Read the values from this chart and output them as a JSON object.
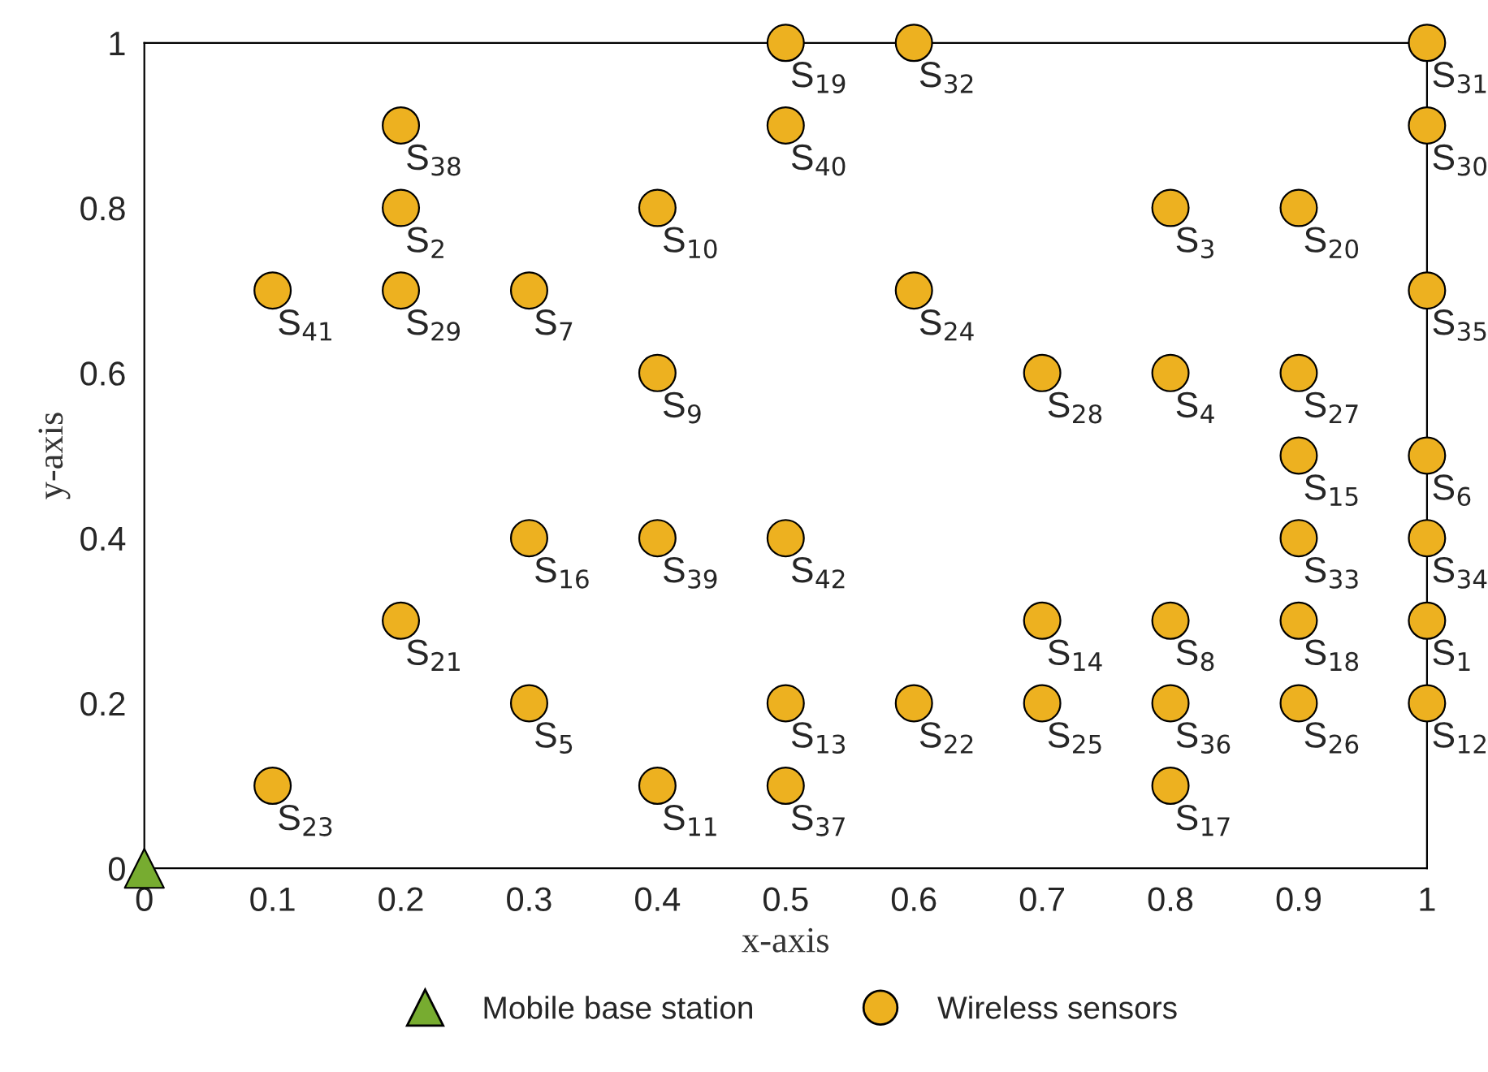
{
  "chart_data": {
    "type": "scatter",
    "xlabel": "x-axis",
    "ylabel": "y-axis",
    "xlim": [
      0,
      1
    ],
    "ylim": [
      0,
      1
    ],
    "xticks": [
      0,
      0.1,
      0.2,
      0.3,
      0.4,
      0.5,
      0.6,
      0.7,
      0.8,
      0.9,
      1
    ],
    "yticks": [
      0,
      0.2,
      0.4,
      0.6,
      0.8,
      1
    ],
    "grid": false,
    "legend": "bottom",
    "series": [
      {
        "name": "Mobile base station",
        "color": "#77ac30",
        "marker": "triangle",
        "x": [
          0
        ],
        "values": [
          0
        ]
      },
      {
        "name": "Wireless sensors",
        "color": "#edb120",
        "marker": "circle",
        "x": [
          0.1,
          0.1,
          0.2,
          0.2,
          0.2,
          0.2,
          0.3,
          0.3,
          0.3,
          0.4,
          0.4,
          0.4,
          0.4,
          0.5,
          0.5,
          0.5,
          0.5,
          0.5,
          0.6,
          0.6,
          0.6,
          0.7,
          0.7,
          0.7,
          0.8,
          0.8,
          0.8,
          0.8,
          0.8,
          0.9,
          0.9,
          0.9,
          0.9,
          0.9,
          0.9,
          1,
          1,
          1,
          1,
          1,
          1,
          1
        ],
        "values": [
          0.7,
          0.1,
          0.9,
          0.8,
          0.7,
          0.3,
          0.7,
          0.4,
          0.2,
          0.8,
          0.6,
          0.4,
          0.1,
          1,
          0.9,
          0.4,
          0.2,
          0.1,
          1,
          0.7,
          0.2,
          0.6,
          0.3,
          0.2,
          0.8,
          0.6,
          0.3,
          0.2,
          0.1,
          0.8,
          0.6,
          0.5,
          0.4,
          0.3,
          0.2,
          1,
          0.9,
          0.7,
          0.5,
          0.4,
          0.3,
          0.2
        ]
      }
    ],
    "annotations": [
      {
        "text": "S$_{41}$",
        "x": 0.1,
        "y": 0.7
      },
      {
        "text": "S$_{23}$",
        "x": 0.1,
        "y": 0.1
      },
      {
        "text": "S$_{38}$",
        "x": 0.2,
        "y": 0.9
      },
      {
        "text": "S$_{2}$",
        "x": 0.2,
        "y": 0.8
      },
      {
        "text": "S$_{29}$",
        "x": 0.2,
        "y": 0.7
      },
      {
        "text": "S$_{21}$",
        "x": 0.2,
        "y": 0.3
      },
      {
        "text": "S$_{7}$",
        "x": 0.3,
        "y": 0.7
      },
      {
        "text": "S$_{16}$",
        "x": 0.3,
        "y": 0.4
      },
      {
        "text": "S$_{5}$",
        "x": 0.3,
        "y": 0.2
      },
      {
        "text": "S$_{10}$",
        "x": 0.4,
        "y": 0.8
      },
      {
        "text": "S$_{9}$",
        "x": 0.4,
        "y": 0.6
      },
      {
        "text": "S$_{39}$",
        "x": 0.4,
        "y": 0.4
      },
      {
        "text": "S$_{11}$",
        "x": 0.4,
        "y": 0.1
      },
      {
        "text": "S$_{19}$",
        "x": 0.5,
        "y": 1
      },
      {
        "text": "S$_{40}$",
        "x": 0.5,
        "y": 0.9
      },
      {
        "text": "S$_{42}$",
        "x": 0.5,
        "y": 0.4
      },
      {
        "text": "S$_{13}$",
        "x": 0.5,
        "y": 0.2
      },
      {
        "text": "S$_{37}$",
        "x": 0.5,
        "y": 0.1
      },
      {
        "text": "S$_{32}$",
        "x": 0.6,
        "y": 1
      },
      {
        "text": "S$_{24}$",
        "x": 0.6,
        "y": 0.7
      },
      {
        "text": "S$_{22}$",
        "x": 0.6,
        "y": 0.2
      },
      {
        "text": "S$_{28}$",
        "x": 0.7,
        "y": 0.6
      },
      {
        "text": "S$_{14}$",
        "x": 0.7,
        "y": 0.3
      },
      {
        "text": "S$_{25}$",
        "x": 0.7,
        "y": 0.2
      },
      {
        "text": "S$_{3}$",
        "x": 0.8,
        "y": 0.8
      },
      {
        "text": "S$_{4}$",
        "x": 0.8,
        "y": 0.6
      },
      {
        "text": "S$_{8}$",
        "x": 0.8,
        "y": 0.3
      },
      {
        "text": "S$_{36}$",
        "x": 0.8,
        "y": 0.2
      },
      {
        "text": "S$_{17}$",
        "x": 0.8,
        "y": 0.1
      },
      {
        "text": "S$_{20}$",
        "x": 0.9,
        "y": 0.8
      },
      {
        "text": "S$_{27}$",
        "x": 0.9,
        "y": 0.6
      },
      {
        "text": "S$_{15}$",
        "x": 0.9,
        "y": 0.5
      },
      {
        "text": "S$_{33}$",
        "x": 0.9,
        "y": 0.4
      },
      {
        "text": "S$_{18}$",
        "x": 0.9,
        "y": 0.3
      },
      {
        "text": "S$_{26}$",
        "x": 0.9,
        "y": 0.2
      },
      {
        "text": "S$_{31}$",
        "x": 1,
        "y": 1
      },
      {
        "text": "S$_{30}$",
        "x": 1,
        "y": 0.9
      },
      {
        "text": "S$_{35}$",
        "x": 1,
        "y": 0.7
      },
      {
        "text": "S$_{6}$",
        "x": 1,
        "y": 0.5
      },
      {
        "text": "S$_{34}$",
        "x": 1,
        "y": 0.4
      },
      {
        "text": "S$_{1}$",
        "x": 1,
        "y": 0.3
      },
      {
        "text": "S$_{12}$",
        "x": 1,
        "y": 0.2
      }
    ]
  }
}
